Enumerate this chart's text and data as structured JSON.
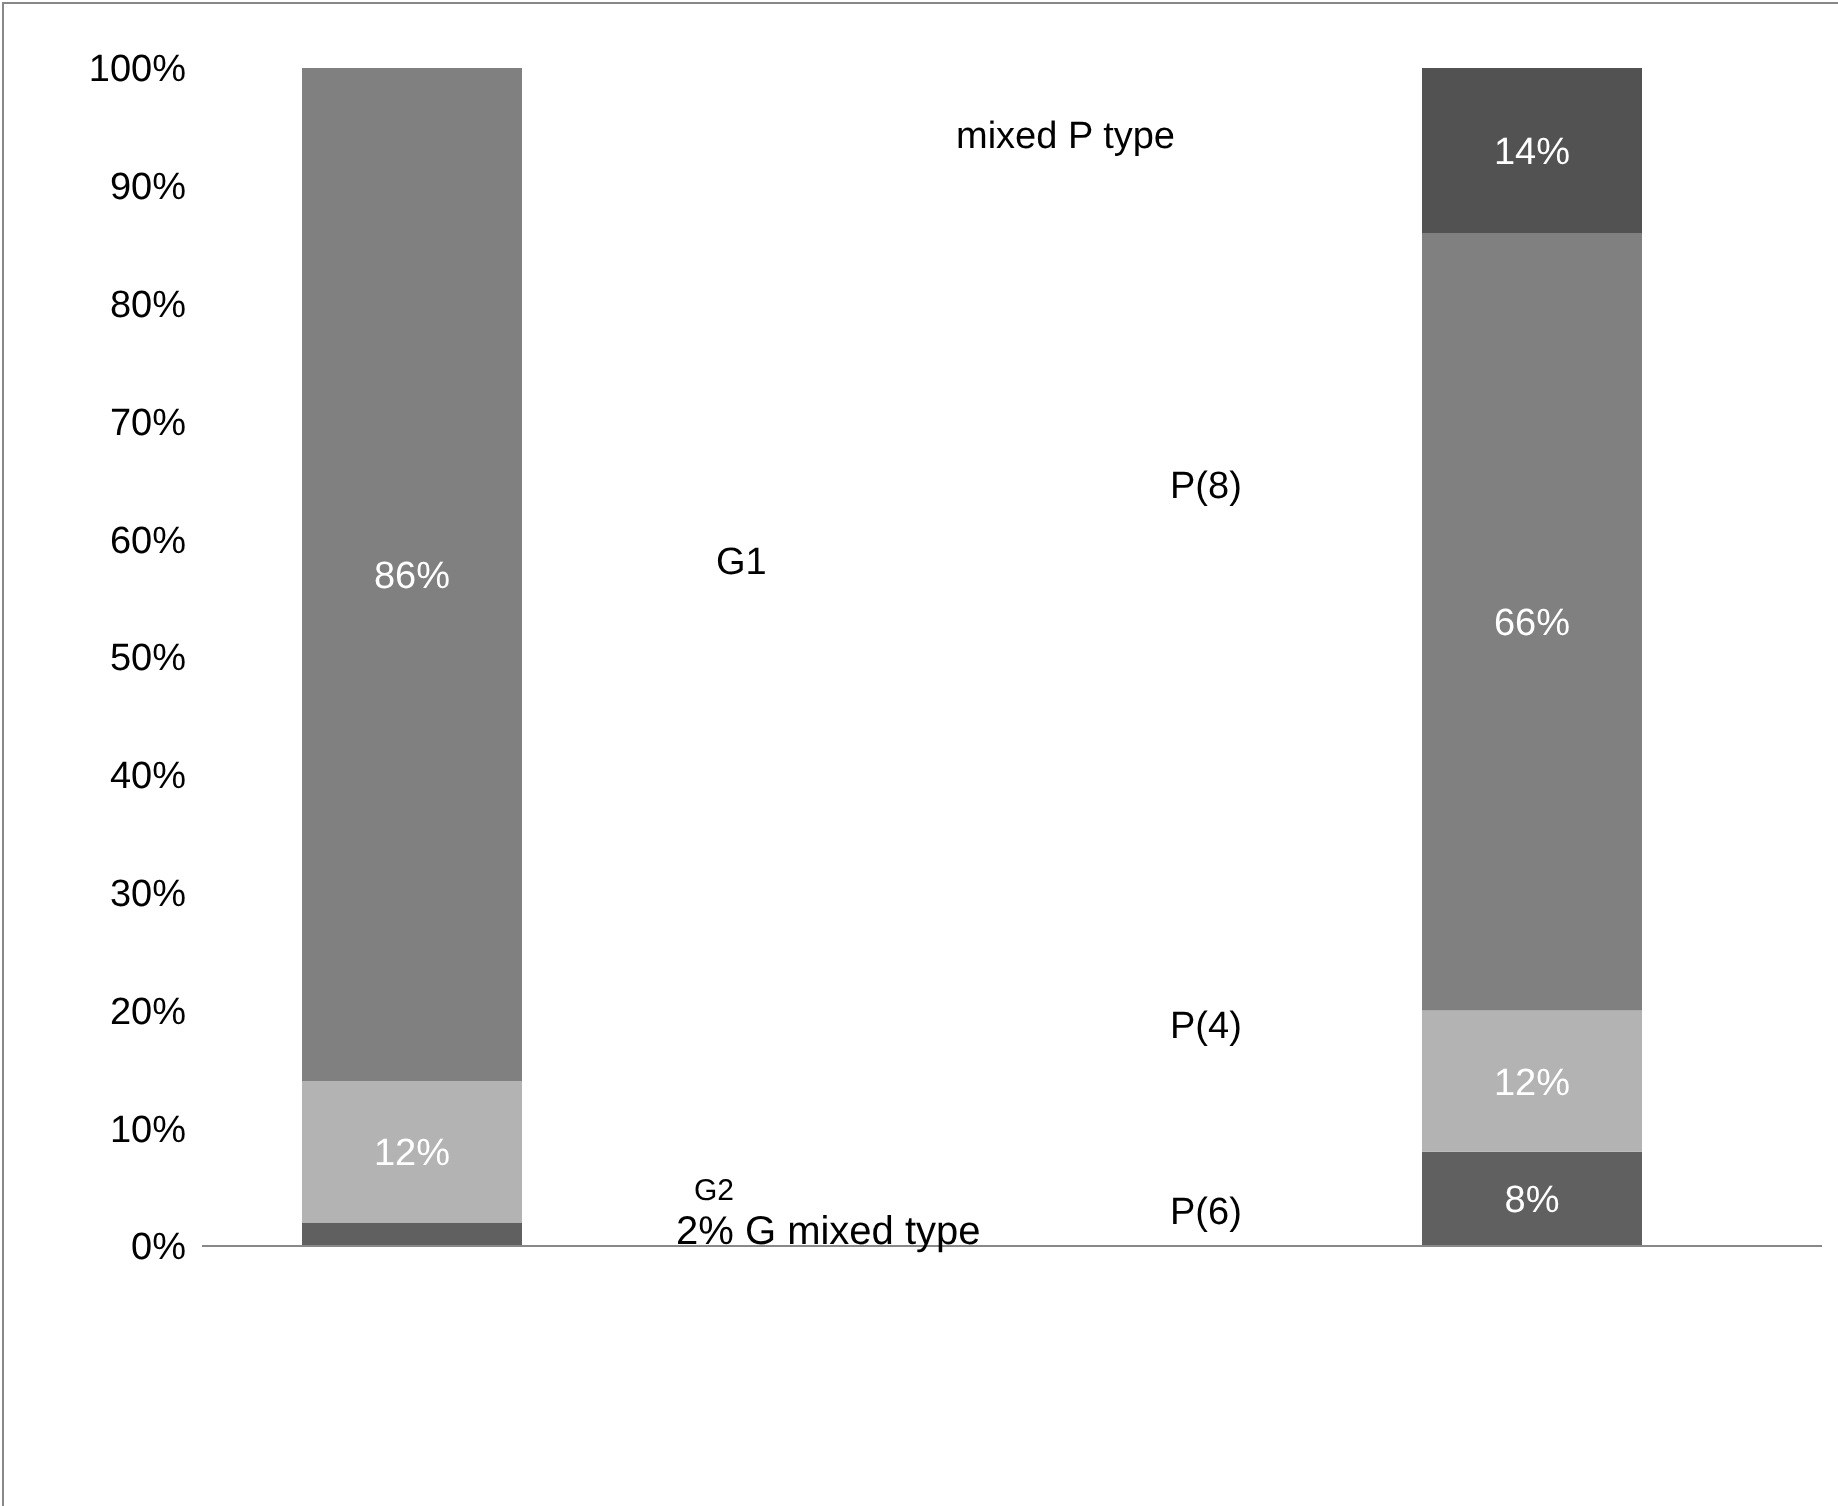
{
  "chart_data": {
    "type": "bar",
    "stacked": true,
    "categories": [
      null,
      null
    ],
    "series": [
      {
        "color": "#606060",
        "values": [
          2,
          8
        ],
        "value_labels": [
          null,
          "8%"
        ]
      },
      {
        "color": "#b3b3b3",
        "values": [
          12,
          12
        ],
        "value_labels": [
          "12%",
          "12%"
        ]
      },
      {
        "color": "#808080",
        "values": [
          86,
          66
        ],
        "value_labels": [
          "86%",
          "66%"
        ]
      },
      {
        "color": "#525252",
        "values": [
          null,
          14
        ],
        "value_labels": [
          null,
          "14%"
        ]
      }
    ],
    "ylim": [
      0,
      100
    ],
    "yticks": [
      {
        "value": 0,
        "label": "0%"
      },
      {
        "value": 10,
        "label": "10%"
      },
      {
        "value": 20,
        "label": "20%"
      },
      {
        "value": 30,
        "label": "30%"
      },
      {
        "value": 40,
        "label": "40%"
      },
      {
        "value": 50,
        "label": "50%"
      },
      {
        "value": 60,
        "label": "60%"
      },
      {
        "value": 70,
        "label": "70%"
      },
      {
        "value": 80,
        "label": "80%"
      },
      {
        "value": 90,
        "label": "90%"
      },
      {
        "value": 100,
        "label": "100%"
      }
    ],
    "grid": false,
    "legend": false,
    "annotations": [
      "mixed P type",
      "P(8)",
      "G1",
      "P(4)",
      "G2",
      "P(6)",
      "2% G mixed type"
    ]
  }
}
